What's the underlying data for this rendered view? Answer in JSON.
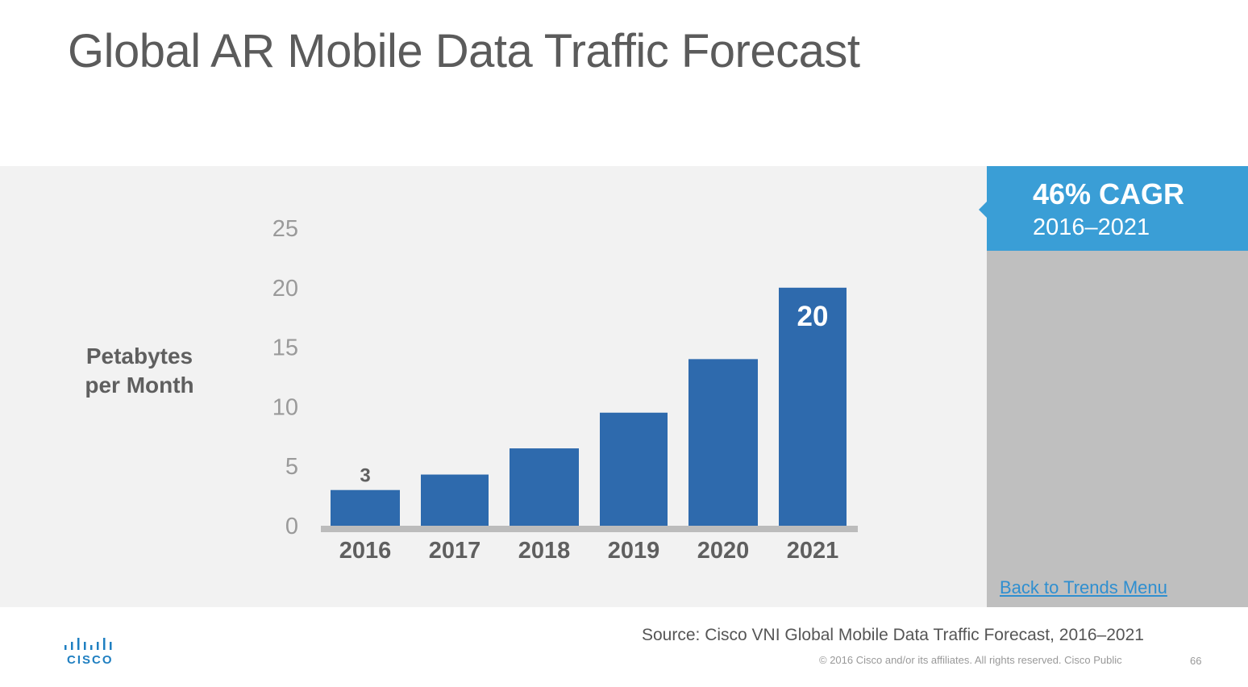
{
  "title": "Global AR Mobile Data Traffic Forecast",
  "callout": {
    "value": "46% CAGR",
    "period": "2016–2021"
  },
  "back_link": "Back to Trends Menu",
  "source": "Source: Cisco VNI Global Mobile Data Traffic Forecast, 2016–2021",
  "footer": {
    "copyright": "© 2016  Cisco and/or its affiliates. All rights reserved.   Cisco Public",
    "page_number": "66"
  },
  "logo": {
    "text": "CISCO"
  },
  "colors": {
    "bar": "#2e6aad",
    "accent": "#3a9ed6",
    "sidebar": "#bfbfbf",
    "panel": "#f2f2f2",
    "axis": "#bcbcbc"
  },
  "chart_data": {
    "type": "bar",
    "title": "",
    "xlabel": "",
    "ylabel": "Petabytes per Month",
    "categories": [
      "2016",
      "2017",
      "2018",
      "2019",
      "2020",
      "2021"
    ],
    "values": [
      3,
      4.3,
      6.5,
      9.5,
      14,
      20
    ],
    "ylim": [
      0,
      25
    ],
    "yticks": [
      0,
      5,
      10,
      15,
      20,
      25
    ],
    "data_labels": [
      {
        "index": 0,
        "text": "3",
        "position": "above"
      },
      {
        "index": 5,
        "text": "20",
        "position": "inside-top"
      }
    ],
    "grid": false,
    "legend": "none"
  }
}
